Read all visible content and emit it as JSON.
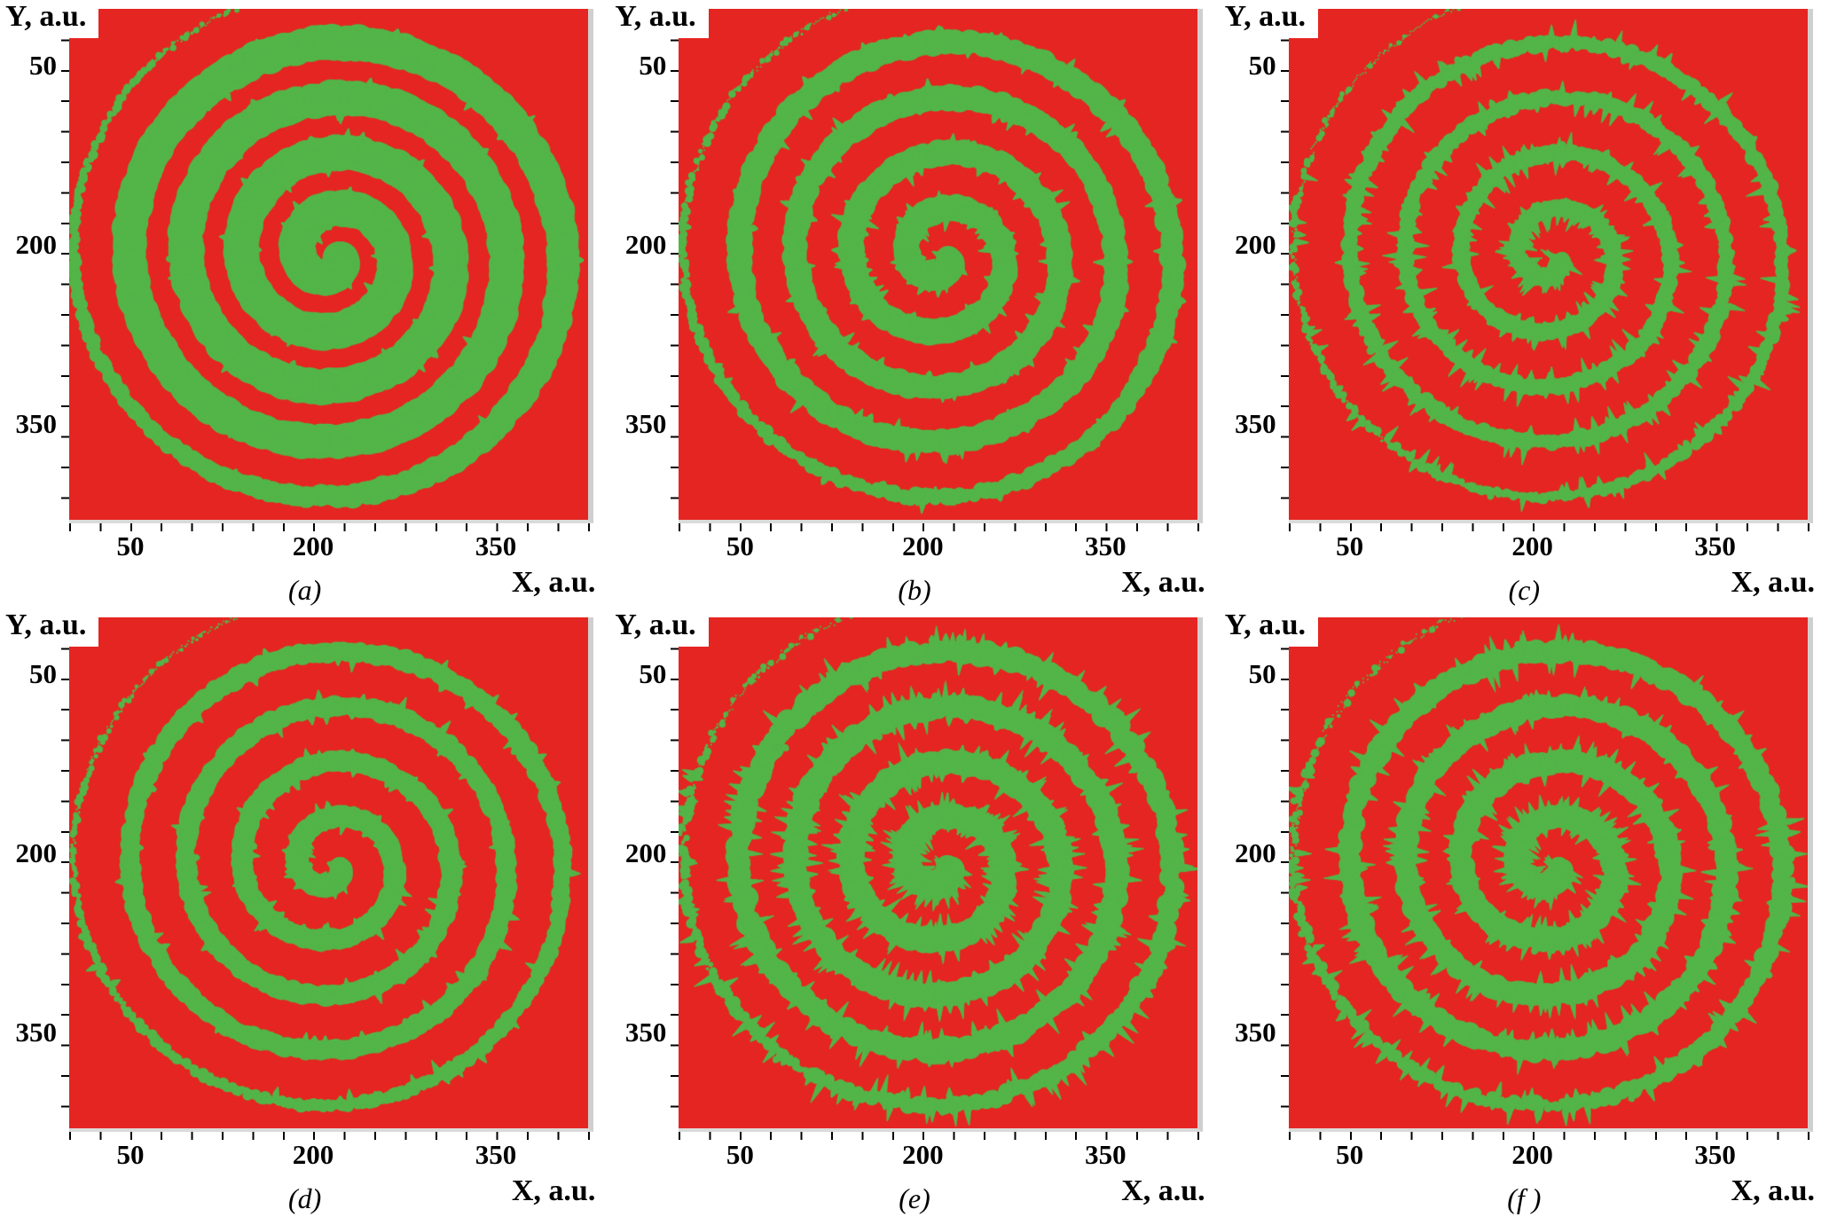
{
  "figure": {
    "red_color": "#e52521",
    "green_color": "#53b548",
    "description": "Six panels (a)-(f) of simulated spiral wave patterns: green spiral arms on a red background with axes in arbitrary units."
  },
  "chart_data": [
    {
      "type": "heatmap",
      "panel_label": "(a)",
      "xlabel": "X, a.u.",
      "ylabel": "Y, a.u.",
      "x_ticks": [
        50,
        200,
        350
      ],
      "y_ticks": [
        50,
        200,
        350
      ],
      "xlim": [
        0,
        430
      ],
      "ylim": [
        0,
        430
      ],
      "pattern": "spiral wave, thick smooth arms",
      "spiral": {
        "cx": 218,
        "cy": 208,
        "r0": 5,
        "pitch": 7.4,
        "turns": 4.7,
        "arm_width": 26,
        "noise": 3,
        "fingers": 0.02,
        "finger_len": 6,
        "out_bias": 0.5,
        "taper_at": 0.84,
        "seed": 101
      }
    },
    {
      "type": "heatmap",
      "panel_label": "(b)",
      "xlabel": "X, a.u.",
      "ylabel": "Y, a.u.",
      "x_ticks": [
        50,
        200,
        350
      ],
      "y_ticks": [
        50,
        200,
        350
      ],
      "xlim": [
        0,
        430
      ],
      "ylim": [
        0,
        430
      ],
      "pattern": "spiral wave, medium arms with ragged edges",
      "spiral": {
        "cx": 218,
        "cy": 208,
        "r0": 5,
        "pitch": 7.4,
        "turns": 4.7,
        "arm_width": 17,
        "noise": 3.5,
        "fingers": 0.08,
        "finger_len": 8,
        "out_bias": 0.5,
        "taper_at": 0.84,
        "seed": 202
      }
    },
    {
      "type": "heatmap",
      "panel_label": "(c)",
      "xlabel": "X, a.u.",
      "ylabel": "Y, a.u.",
      "x_ticks": [
        50,
        200,
        350
      ],
      "y_ticks": [
        50,
        200,
        350
      ],
      "xlim": [
        0,
        430
      ],
      "ylim": [
        0,
        430
      ],
      "pattern": "spiral wave, thin fragmented arms with long fingers",
      "spiral": {
        "cx": 218,
        "cy": 208,
        "r0": 5,
        "pitch": 7.4,
        "turns": 4.7,
        "arm_width": 10,
        "noise": 3.5,
        "fingers": 0.16,
        "finger_len": 12,
        "out_bias": 0.45,
        "taper_at": 0.84,
        "seed": 303
      }
    },
    {
      "type": "heatmap",
      "panel_label": "(d)",
      "xlabel": "X, a.u.",
      "ylabel": "Y, a.u.",
      "x_ticks": [
        50,
        200,
        350
      ],
      "y_ticks": [
        50,
        200,
        350
      ],
      "xlim": [
        0,
        430
      ],
      "ylim": [
        0,
        430
      ],
      "pattern": "spiral wave, medium-thin fairly clean arms",
      "spiral": {
        "cx": 218,
        "cy": 208,
        "r0": 5,
        "pitch": 7.4,
        "turns": 4.7,
        "arm_width": 14,
        "noise": 3,
        "fingers": 0.06,
        "finger_len": 7,
        "out_bias": 0.5,
        "taper_at": 0.84,
        "seed": 404
      }
    },
    {
      "type": "heatmap",
      "panel_label": "(e)",
      "xlabel": "X, a.u.",
      "ylabel": "Y, a.u.",
      "x_ticks": [
        50,
        200,
        350
      ],
      "y_ticks": [
        50,
        200,
        350
      ],
      "xlim": [
        0,
        430
      ],
      "ylim": [
        0,
        430
      ],
      "pattern": "spiral wave, arms with heavy flame-like fringes",
      "spiral": {
        "cx": 218,
        "cy": 208,
        "r0": 5,
        "pitch": 7.4,
        "turns": 4.7,
        "arm_width": 15,
        "noise": 4.5,
        "fingers": 0.22,
        "finger_len": 14,
        "out_bias": 0.6,
        "taper_at": 0.84,
        "seed": 505
      }
    },
    {
      "type": "heatmap",
      "panel_label": "(f )",
      "xlabel": "X, a.u.",
      "ylabel": "Y, a.u.",
      "x_ticks": [
        50,
        200,
        350
      ],
      "y_ticks": [
        50,
        200,
        350
      ],
      "xlim": [
        0,
        430
      ],
      "ylim": [
        0,
        430
      ],
      "pattern": "spiral wave, arms with heavy ragged fringes",
      "spiral": {
        "cx": 218,
        "cy": 208,
        "r0": 5,
        "pitch": 7.4,
        "turns": 4.7,
        "arm_width": 14,
        "noise": 4.5,
        "fingers": 0.2,
        "finger_len": 13,
        "out_bias": 0.6,
        "taper_at": 0.84,
        "seed": 606
      }
    }
  ]
}
